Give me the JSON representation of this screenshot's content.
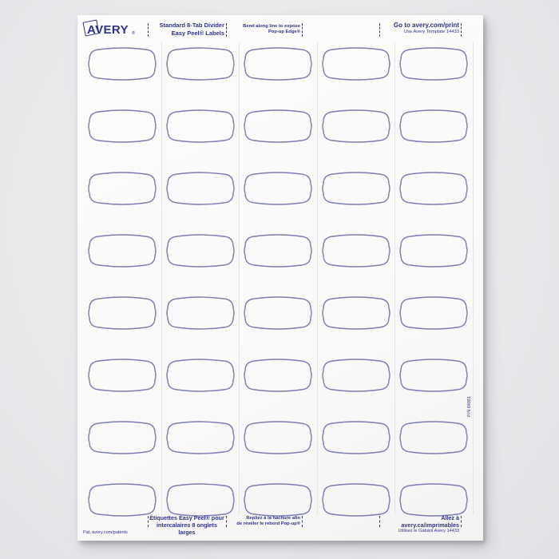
{
  "colors": {
    "print_blue": "#30328b",
    "label_outline": "#7d7bb4",
    "sheet_white": "#fbfbfa",
    "background_gray": "#e9eaec",
    "perforation_gray": "#e4e4e9"
  },
  "brand": {
    "name": "AVERY",
    "registered": "®"
  },
  "header": {
    "product_line1": "Standard 8-Tab Divider",
    "product_line2": "Easy Peel® Labels",
    "bend_line1": "Bend along line to expose",
    "bend_line2": "Pop-up Edge®",
    "go_line1": "Go to avery.com/print",
    "go_line2": "Use Avery Template 14433"
  },
  "sheet": {
    "part_number": "P/N 64081",
    "patent": "Pat. avery.com/patents"
  },
  "grid": {
    "rows": 8,
    "columns": 5,
    "label_count": 40
  },
  "footer": {
    "fr_product_line1": "Étiquettes Easy Peel® pour",
    "fr_product_line2": "intercalaires 8 onglets larges",
    "fr_bend_line1": "Repliez à la hachure afin",
    "fr_bend_line2": "de révéler le rebord Pop-up®",
    "fr_go_line1": "Allez à avery.ca/imprimables",
    "fr_go_line2": "Utilisez le Gabarit Avery 14433"
  }
}
